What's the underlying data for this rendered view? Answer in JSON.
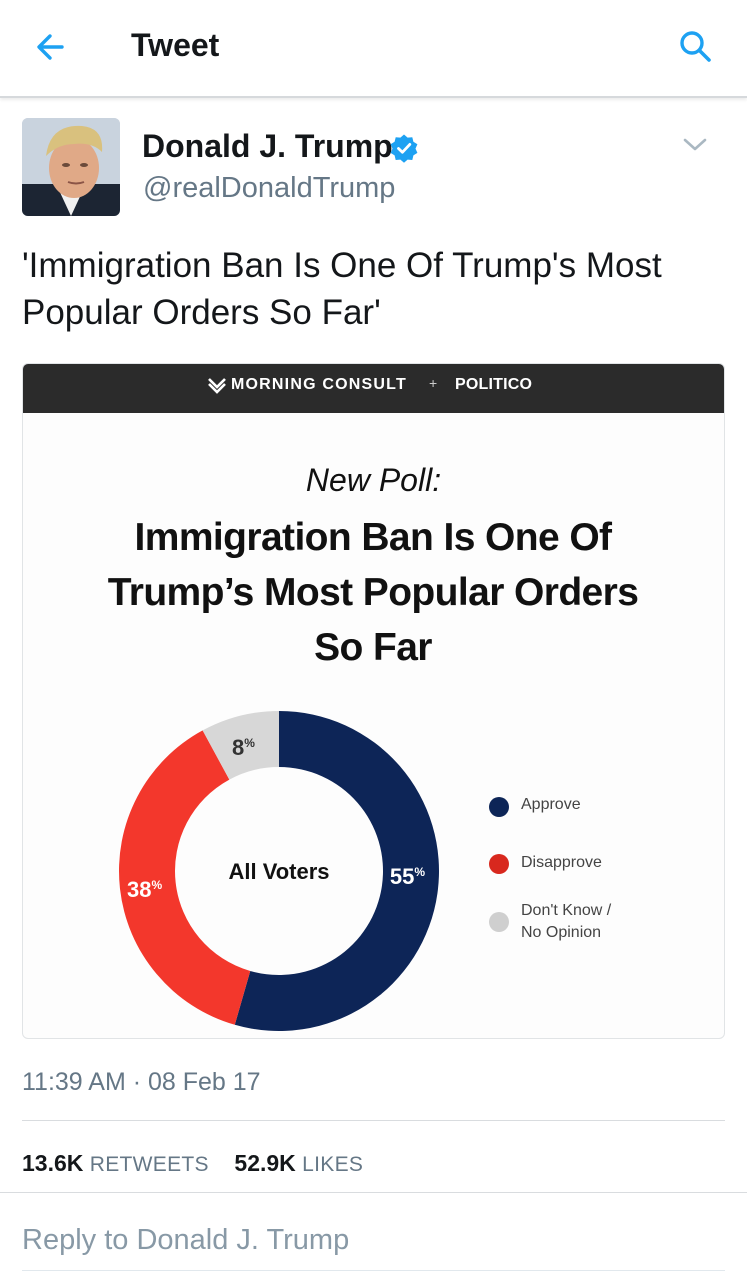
{
  "header": {
    "title": "Tweet"
  },
  "author": {
    "name": "Donald J. Trump",
    "handle": "@realDonaldTrump"
  },
  "tweet": {
    "text": "'Immigration Ban Is One Of Trump's Most Popular Orders So Far'",
    "timestamp": "11:39 AM · 08 Feb 17"
  },
  "card": {
    "brand_primary": "MORNING CONSULT",
    "brand_separator": "+",
    "brand_secondary": "POLITICO",
    "kicker": "New Poll:",
    "headline": "Immigration Ban Is One Of Trump’s Most Popular Orders So Far"
  },
  "chart_data": {
    "type": "pie",
    "center_label": "All Voters",
    "slices": [
      {
        "label": "Approve",
        "value": 55,
        "display": "55",
        "color": "#0d2557"
      },
      {
        "label": "Disapprove",
        "value": 38,
        "display": "38",
        "color": "#f3372c"
      },
      {
        "label": "Don't Know / No Opinion",
        "value": 8,
        "display": "8",
        "color": "#d7d7d7"
      }
    ],
    "unit": "%",
    "legend_placement": "right"
  },
  "legend": {
    "approve": "Approve",
    "disapprove": "Disapprove",
    "dontknow_line1": "Don't Know /",
    "dontknow_line2": "No Opinion"
  },
  "stats": {
    "retweets_count": "13.6K",
    "retweets_label": "RETWEETS",
    "likes_count": "52.9K",
    "likes_label": "LIKES"
  },
  "reply": {
    "placeholder": "Reply to Donald J. Trump"
  },
  "colors": {
    "accent": "#1da1f2",
    "approve": "#0d2557",
    "disapprove": "#f3372c",
    "neutral": "#d7d7d7"
  }
}
